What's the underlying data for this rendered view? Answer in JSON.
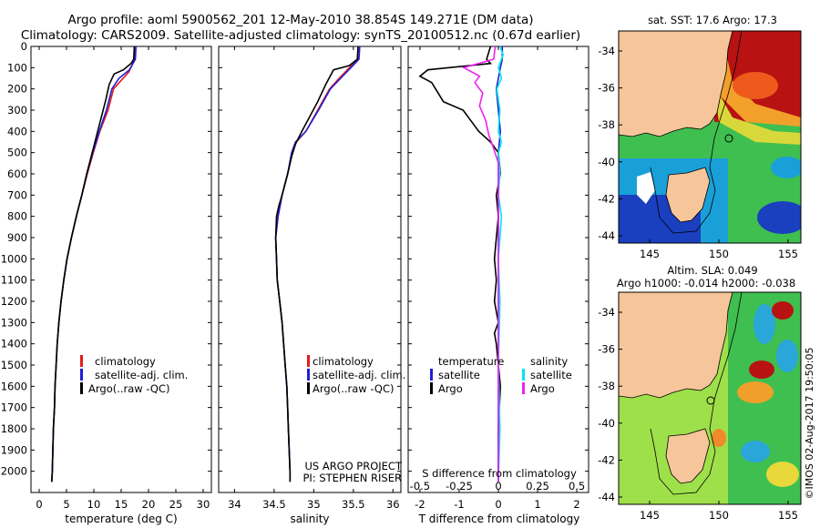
{
  "header": {
    "line1": "Argo profile: aoml 5900562_201 12-May-2010 38.854S 149.271E (DM data)",
    "line2": "Climatology: CARS2009. Satellite-adjusted climatology: synTS_20100512.nc (0.67d earlier)"
  },
  "colors": {
    "clim": "#e41a1c",
    "sat": "#1f1fd6",
    "argo": "#000000",
    "sal_sat": "#00e5ee",
    "sal_argo": "#ee22ee",
    "land": "#f6c59a"
  },
  "chart_data": [
    {
      "type": "line",
      "id": "temperature",
      "xlabel": "temperature (deg C)",
      "ylabel": "",
      "xlim": [
        -1.5,
        31.5
      ],
      "ylim": [
        2100,
        0
      ],
      "xticks": [
        0,
        5,
        10,
        15,
        20,
        25,
        30
      ],
      "yticks": [
        0,
        100,
        200,
        300,
        400,
        500,
        600,
        700,
        800,
        900,
        1000,
        1100,
        1200,
        1300,
        1400,
        1500,
        1600,
        1700,
        1800,
        1900,
        2000
      ],
      "legend": [
        "climatology",
        "satellite-adj. clim.",
        "Argo(..raw -QC)"
      ],
      "series": [
        {
          "name": "climatology",
          "color": "#e41a1c",
          "points": [
            [
              17.6,
              0
            ],
            [
              17.5,
              60
            ],
            [
              16.4,
              120
            ],
            [
              13.6,
              200
            ],
            [
              12.6,
              300
            ],
            [
              11.1,
              400
            ],
            [
              9.9,
              500
            ],
            [
              8.8,
              600
            ],
            [
              7.8,
              700
            ],
            [
              6.8,
              800
            ],
            [
              5.9,
              900
            ],
            [
              5.1,
              1000
            ],
            [
              4.5,
              1100
            ],
            [
              4.0,
              1200
            ],
            [
              3.6,
              1300
            ],
            [
              3.3,
              1400
            ],
            [
              3.1,
              1500
            ],
            [
              2.9,
              1600
            ],
            [
              2.8,
              1700
            ],
            [
              2.6,
              1800
            ],
            [
              2.5,
              1900
            ],
            [
              2.4,
              2000
            ],
            [
              2.3,
              2050
            ]
          ]
        },
        {
          "name": "satellite-adj. clim.",
          "color": "#1f1fd6",
          "points": [
            [
              17.7,
              0
            ],
            [
              17.6,
              60
            ],
            [
              16.5,
              110
            ],
            [
              14.6,
              150
            ],
            [
              13.3,
              200
            ],
            [
              12.3,
              300
            ],
            [
              11.0,
              400
            ],
            [
              9.8,
              500
            ],
            [
              8.7,
              600
            ],
            [
              7.8,
              700
            ],
            [
              6.8,
              800
            ],
            [
              5.9,
              900
            ],
            [
              5.1,
              1000
            ],
            [
              4.5,
              1100
            ],
            [
              4.0,
              1200
            ],
            [
              3.6,
              1300
            ],
            [
              3.3,
              1400
            ],
            [
              3.1,
              1500
            ],
            [
              2.9,
              1600
            ],
            [
              2.8,
              1700
            ],
            [
              2.6,
              1800
            ],
            [
              2.5,
              1900
            ],
            [
              2.4,
              2000
            ],
            [
              2.3,
              2050
            ]
          ]
        },
        {
          "name": "Argo(..raw -QC)",
          "color": "#000000",
          "points": [
            [
              17.4,
              0
            ],
            [
              17.3,
              60
            ],
            [
              16.8,
              80
            ],
            [
              15.4,
              110
            ],
            [
              13.7,
              130
            ],
            [
              12.8,
              180
            ],
            [
              12.2,
              250
            ],
            [
              11.2,
              350
            ],
            [
              10.4,
              430
            ],
            [
              9.7,
              500
            ],
            [
              8.7,
              600
            ],
            [
              7.8,
              700
            ],
            [
              6.8,
              800
            ],
            [
              5.9,
              900
            ],
            [
              5.1,
              1000
            ],
            [
              4.5,
              1100
            ],
            [
              4.0,
              1200
            ],
            [
              3.6,
              1300
            ],
            [
              3.3,
              1400
            ],
            [
              3.1,
              1500
            ],
            [
              2.9,
              1600
            ],
            [
              2.8,
              1700
            ],
            [
              2.6,
              1800
            ],
            [
              2.5,
              1900
            ],
            [
              2.4,
              2000
            ],
            [
              2.3,
              2050
            ]
          ]
        }
      ]
    },
    {
      "type": "line",
      "id": "salinity",
      "xlabel": "salinity",
      "ylabel": "",
      "xlim": [
        33.8,
        36.1
      ],
      "ylim": [
        2100,
        0
      ],
      "xticks": [
        34,
        34.5,
        35,
        35.5,
        36
      ],
      "legend": [
        "climatology",
        "satellite-adj. clim.",
        "Argo(..raw -QC)"
      ],
      "annotation": [
        "US ARGO PROJECT",
        "PI: STEPHEN RISER"
      ],
      "series": [
        {
          "name": "climatology",
          "color": "#e41a1c",
          "points": [
            [
              35.58,
              0
            ],
            [
              35.57,
              60
            ],
            [
              35.45,
              100
            ],
            [
              35.32,
              150
            ],
            [
              35.2,
              200
            ],
            [
              35.05,
              300
            ],
            [
              34.9,
              400
            ],
            [
              34.78,
              450
            ],
            [
              34.73,
              500
            ],
            [
              34.67,
              600
            ],
            [
              34.6,
              700
            ],
            [
              34.55,
              800
            ],
            [
              34.52,
              900
            ],
            [
              34.53,
              1000
            ],
            [
              34.54,
              1100
            ],
            [
              34.57,
              1200
            ],
            [
              34.6,
              1300
            ],
            [
              34.62,
              1400
            ],
            [
              34.64,
              1500
            ],
            [
              34.66,
              1600
            ],
            [
              34.67,
              1700
            ],
            [
              34.68,
              1800
            ],
            [
              34.69,
              1900
            ],
            [
              34.7,
              2000
            ],
            [
              34.7,
              2050
            ]
          ]
        },
        {
          "name": "satellite-adj. clim.",
          "color": "#1f1fd6",
          "points": [
            [
              35.58,
              0
            ],
            [
              35.57,
              60
            ],
            [
              35.47,
              100
            ],
            [
              35.34,
              150
            ],
            [
              35.21,
              200
            ],
            [
              35.06,
              300
            ],
            [
              34.9,
              400
            ],
            [
              34.77,
              450
            ],
            [
              34.72,
              500
            ],
            [
              34.67,
              600
            ],
            [
              34.6,
              700
            ],
            [
              34.55,
              800
            ],
            [
              34.52,
              900
            ],
            [
              34.53,
              1000
            ],
            [
              34.54,
              1100
            ],
            [
              34.57,
              1200
            ],
            [
              34.6,
              1300
            ],
            [
              34.62,
              1400
            ],
            [
              34.64,
              1500
            ],
            [
              34.66,
              1600
            ],
            [
              34.67,
              1700
            ],
            [
              34.68,
              1800
            ],
            [
              34.69,
              1900
            ],
            [
              34.7,
              2000
            ],
            [
              34.7,
              2050
            ]
          ]
        },
        {
          "name": "Argo(..raw -QC)",
          "color": "#000000",
          "points": [
            [
              35.56,
              0
            ],
            [
              35.55,
              60
            ],
            [
              35.45,
              90
            ],
            [
              35.25,
              110
            ],
            [
              35.15,
              180
            ],
            [
              35.05,
              260
            ],
            [
              34.95,
              330
            ],
            [
              34.85,
              400
            ],
            [
              34.77,
              460
            ],
            [
              34.72,
              520
            ],
            [
              34.67,
              600
            ],
            [
              34.6,
              700
            ],
            [
              34.56,
              750
            ],
            [
              34.53,
              800
            ],
            [
              34.52,
              900
            ],
            [
              34.53,
              1000
            ],
            [
              34.54,
              1100
            ],
            [
              34.57,
              1200
            ],
            [
              34.6,
              1300
            ],
            [
              34.62,
              1400
            ],
            [
              34.64,
              1500
            ],
            [
              34.66,
              1600
            ],
            [
              34.67,
              1700
            ],
            [
              34.68,
              1800
            ],
            [
              34.69,
              1900
            ],
            [
              34.7,
              2000
            ],
            [
              34.7,
              2050
            ]
          ]
        }
      ]
    },
    {
      "type": "line",
      "id": "difference",
      "xlabel": "T difference from climatology",
      "xlabel2": "S difference from climatology",
      "xlim": [
        -2.3,
        2.3
      ],
      "ylim": [
        2100,
        0
      ],
      "xticks_T": [
        -2,
        -1,
        0,
        1,
        2
      ],
      "xticks_S": [
        -0.5,
        -0.25,
        0,
        0.25,
        0.5
      ],
      "legend_temperature": {
        "title": "temperature",
        "items": [
          "satellite",
          "Argo"
        ]
      },
      "legend_salinity": {
        "title": "salinity",
        "items": [
          "satellite",
          "Argo"
        ]
      },
      "series": [
        {
          "name": "T satellite",
          "color": "#1f1fd6",
          "points": [
            [
              0.1,
              0
            ],
            [
              0.1,
              60
            ],
            [
              0.05,
              100
            ],
            [
              -0.05,
              200
            ],
            [
              0,
              300
            ],
            [
              0.05,
              400
            ],
            [
              0,
              500
            ],
            [
              0,
              700
            ],
            [
              0,
              1000
            ],
            [
              0,
              1500
            ],
            [
              0,
              2050
            ]
          ]
        },
        {
          "name": "T Argo",
          "color": "#000000",
          "points": [
            [
              -0.2,
              0
            ],
            [
              -0.3,
              60
            ],
            [
              -0.2,
              80
            ],
            [
              -1.8,
              110
            ],
            [
              -2.0,
              140
            ],
            [
              -1.7,
              170
            ],
            [
              -1.6,
              200
            ],
            [
              -1.4,
              260
            ],
            [
              -0.9,
              300
            ],
            [
              -0.7,
              350
            ],
            [
              -0.5,
              400
            ],
            [
              -0.2,
              450
            ],
            [
              0,
              500
            ],
            [
              0.05,
              600
            ],
            [
              -0.05,
              700
            ],
            [
              0,
              800
            ],
            [
              -0.05,
              900
            ],
            [
              -0.1,
              1000
            ],
            [
              -0.05,
              1100
            ],
            [
              -0.1,
              1200
            ],
            [
              0,
              1300
            ],
            [
              -0.1,
              1350
            ],
            [
              -0.05,
              1400
            ],
            [
              0,
              1500
            ],
            [
              0.05,
              1600
            ],
            [
              0,
              1800
            ],
            [
              0,
              2050
            ]
          ]
        },
        {
          "name": "S satellite",
          "color": "#00e5ee",
          "points": [
            [
              0.01,
              0
            ],
            [
              0.03,
              40
            ],
            [
              0,
              100
            ],
            [
              0.02,
              150
            ],
            [
              -0.01,
              200
            ],
            [
              0.01,
              300
            ],
            [
              0,
              400
            ],
            [
              0.02,
              450
            ],
            [
              0,
              500
            ],
            [
              0.01,
              600
            ],
            [
              0,
              700
            ],
            [
              0.02,
              800
            ],
            [
              0,
              1000
            ],
            [
              0.01,
              1200
            ],
            [
              0,
              1500
            ],
            [
              0.01,
              1800
            ],
            [
              0,
              2050
            ]
          ]
        },
        {
          "name": "S Argo",
          "color": "#ee22ee",
          "points": [
            [
              -0.02,
              0
            ],
            [
              -0.03,
              60
            ],
            [
              -0.22,
              100
            ],
            [
              -0.12,
              140
            ],
            [
              -0.15,
              170
            ],
            [
              -0.1,
              220
            ],
            [
              -0.12,
              280
            ],
            [
              -0.08,
              350
            ],
            [
              -0.06,
              420
            ],
            [
              -0.03,
              480
            ],
            [
              0,
              550
            ],
            [
              0,
              700
            ],
            [
              0,
              1000
            ],
            [
              0,
              1500
            ],
            [
              0,
              2050
            ]
          ]
        }
      ]
    }
  ],
  "maps": [
    {
      "id": "sst",
      "title": "sat. SST: 17.6 Argo: 17.3",
      "xticks": [
        "145",
        "150",
        "155"
      ],
      "yticks": [
        "-34",
        "-36",
        "-38",
        "-40",
        "-42",
        "-44"
      ]
    },
    {
      "id": "sla",
      "title_line1": "Altim. SLA: 0.049",
      "title_line2": "Argo h1000: -0.014 h2000: -0.038",
      "xticks": [
        "145",
        "150",
        "155"
      ],
      "yticks": [
        "-34",
        "-36",
        "-38",
        "-40",
        "-42",
        "-44"
      ]
    }
  ],
  "footer": {
    "stamp": "©IMOS 02-Aug-2017 19:50:05"
  }
}
